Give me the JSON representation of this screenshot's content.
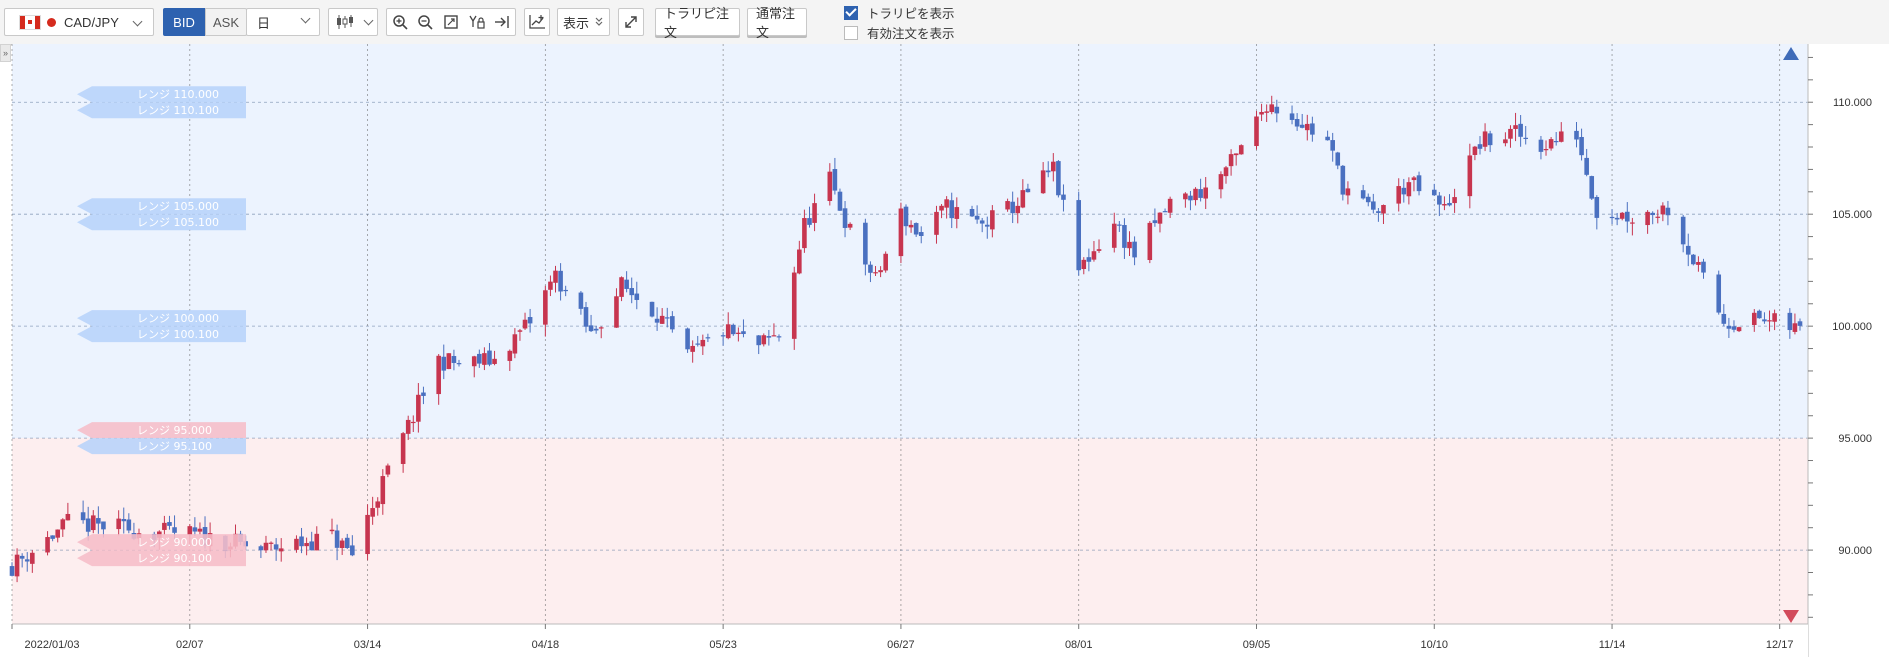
{
  "toolbar": {
    "pair": "CAD/JPY",
    "bid_label": "BID",
    "ask_label": "ASK",
    "period": "日",
    "display_label": "表示",
    "trailing_order_label": "トラリピ注文",
    "normal_order_label": "通常注文",
    "show_trailing_label": "トラリピを表示",
    "show_trailing_checked": true,
    "show_active_orders_label": "有効注文を表示",
    "show_active_orders_checked": false
  },
  "colors": {
    "up": "#c7354f",
    "down": "#4a70c0",
    "buy_zone": "#ecf3fe",
    "sell_zone": "#fdeeef",
    "accent": "#2e62b0"
  },
  "chart_data": {
    "type": "candlestick",
    "y_axis": {
      "min": 86.7,
      "max": 112.6,
      "ticks": [
        90,
        95,
        100,
        105,
        110
      ],
      "tick_labels": [
        "90.000",
        "95.000",
        "100.000",
        "105.000",
        "110.000"
      ]
    },
    "x_axis": {
      "start": "2022-01-03",
      "end": "2022-12-21",
      "ticks": [
        "2022-01-03",
        "2022-02-07",
        "2022-03-14",
        "2022-04-18",
        "2022-05-23",
        "2022-06-27",
        "2022-08-01",
        "2022-09-05",
        "2022-10-10",
        "2022-11-14",
        "2022-12-17"
      ],
      "tick_labels": [
        "2022/01/03",
        "02/07",
        "03/14",
        "04/18",
        "05/23",
        "06/27",
        "08/01",
        "09/05",
        "10/10",
        "11/14",
        "12/17"
      ]
    },
    "grid": true,
    "zones": [
      {
        "side": "buy",
        "from": 95.0,
        "to": 112.6
      },
      {
        "side": "sell",
        "from": 86.7,
        "to": 95.0
      }
    ],
    "range_tags": [
      {
        "upper": "レンジ 110.000",
        "lower": "レンジ 110.100",
        "price": 110.0,
        "side": "buy"
      },
      {
        "upper": "レンジ 105.000",
        "lower": "レンジ 105.100",
        "price": 105.0,
        "side": "buy"
      },
      {
        "upper": "レンジ 100.000",
        "lower": "レンジ 100.100",
        "price": 100.0,
        "side": "buy"
      },
      {
        "upper": "レンジ 95.000",
        "lower": "レンジ 95.100",
        "price": 95.0,
        "side": "mixed"
      },
      {
        "upper": "レンジ 90.000",
        "lower": "レンジ 90.100",
        "price": 90.0,
        "side": "sell"
      }
    ],
    "anchors": [
      [
        "2022-01-03",
        89.3
      ],
      [
        "2022-01-10",
        90.5
      ],
      [
        "2022-01-14",
        91.2
      ],
      [
        "2022-01-24",
        91.0
      ],
      [
        "2022-01-31",
        90.8
      ],
      [
        "2022-02-07",
        90.7
      ],
      [
        "2022-02-14",
        90.4
      ],
      [
        "2022-02-21",
        90.0
      ],
      [
        "2022-02-28",
        90.3
      ],
      [
        "2022-03-07",
        90.6
      ],
      [
        "2022-03-11",
        89.8
      ],
      [
        "2022-03-14",
        91.5
      ],
      [
        "2022-03-21",
        95.0
      ],
      [
        "2022-03-28",
        98.5
      ],
      [
        "2022-04-01",
        98.3
      ],
      [
        "2022-04-08",
        98.5
      ],
      [
        "2022-04-15",
        100.2
      ],
      [
        "2022-04-20",
        102.3
      ],
      [
        "2022-04-27",
        99.6
      ],
      [
        "2022-05-03",
        101.8
      ],
      [
        "2022-05-10",
        100.6
      ],
      [
        "2022-05-16",
        98.6
      ],
      [
        "2022-05-23",
        99.8
      ],
      [
        "2022-05-30",
        99.1
      ],
      [
        "2022-06-03",
        99.6
      ],
      [
        "2022-06-08",
        104.5
      ],
      [
        "2022-06-13",
        106.5
      ],
      [
        "2022-06-17",
        104.2
      ],
      [
        "2022-06-22",
        102.0
      ],
      [
        "2022-06-27",
        105.0
      ],
      [
        "2022-07-01",
        104.0
      ],
      [
        "2022-07-06",
        105.3
      ],
      [
        "2022-07-13",
        104.5
      ],
      [
        "2022-07-20",
        105.5
      ],
      [
        "2022-07-27",
        107.0
      ],
      [
        "2022-08-01",
        102.5
      ],
      [
        "2022-08-08",
        104.6
      ],
      [
        "2022-08-12",
        103.2
      ],
      [
        "2022-08-19",
        105.5
      ],
      [
        "2022-08-26",
        106.1
      ],
      [
        "2022-09-01",
        107.5
      ],
      [
        "2022-09-07",
        110.0
      ],
      [
        "2022-09-12",
        109.4
      ],
      [
        "2022-09-19",
        108.2
      ],
      [
        "2022-09-22",
        106.3
      ],
      [
        "2022-09-28",
        105.0
      ],
      [
        "2022-10-05",
        106.4
      ],
      [
        "2022-10-12",
        105.2
      ],
      [
        "2022-10-19",
        108.2
      ],
      [
        "2022-10-26",
        108.6
      ],
      [
        "2022-10-31",
        108.1
      ],
      [
        "2022-11-07",
        108.6
      ],
      [
        "2022-11-11",
        105.2
      ],
      [
        "2022-11-18",
        104.9
      ],
      [
        "2022-11-25",
        105.3
      ],
      [
        "2022-12-01",
        102.5
      ],
      [
        "2022-12-06",
        100.2
      ],
      [
        "2022-12-13",
        100.3
      ],
      [
        "2022-12-20",
        99.9
      ]
    ]
  }
}
